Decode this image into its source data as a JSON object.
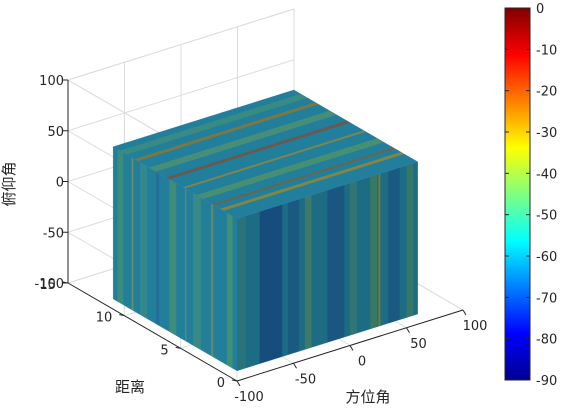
{
  "chart_data": {
    "type": "heatmap",
    "title": "",
    "xlabel": "方位角",
    "ylabel": "距离",
    "zlabel": "俯仰角",
    "xlim": [
      -100,
      100
    ],
    "ylim": [
      0,
      15
    ],
    "zlim": [
      -100,
      100
    ],
    "x_ticks": [
      "-100",
      "-50",
      "0",
      "50",
      "100"
    ],
    "y_ticks": [
      "0",
      "5",
      "10",
      "15"
    ],
    "z_ticks": [
      "-100",
      "-50",
      "0",
      "50",
      "100"
    ],
    "colorbar": {
      "colormap": "jet",
      "range": [
        -90,
        0
      ],
      "ticks": [
        "0",
        "-10",
        "-20",
        "-30",
        "-40",
        "-50",
        "-60",
        "-70",
        "-80",
        "-90"
      ]
    },
    "volume": {
      "x_range": [
        -100,
        60
      ],
      "y_range": [
        0,
        11
      ],
      "z_range": [
        -90,
        60
      ]
    }
  }
}
